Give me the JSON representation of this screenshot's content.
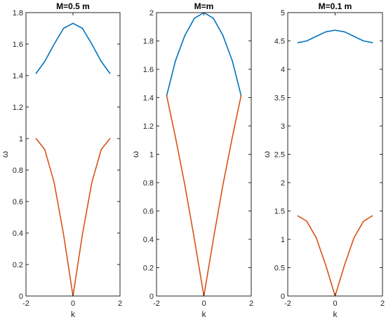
{
  "chart_data": [
    {
      "type": "line",
      "title": "M=0.5 m",
      "xlabel": "k",
      "ylabel": "ω",
      "xlim": [
        -2,
        2
      ],
      "ylim": [
        0,
        1.8
      ],
      "xticks": [
        "-2",
        "0",
        "2"
      ],
      "yticks": [
        "0",
        "0.2",
        "0.4",
        "0.6",
        "0.8",
        "1",
        "1.2",
        "1.4",
        "1.6",
        "1.8"
      ],
      "grid": false,
      "series": [
        {
          "color": "#0072BD",
          "x": [
            -1.571,
            -1.2,
            -0.8,
            -0.4,
            0,
            0.4,
            0.8,
            1.2,
            1.571
          ],
          "y": [
            1.414,
            1.49,
            1.6,
            1.7,
            1.732,
            1.7,
            1.6,
            1.49,
            1.414
          ]
        },
        {
          "color": "#D95319",
          "x": [
            -1.571,
            -1.2,
            -0.8,
            -0.4,
            0,
            0.4,
            0.8,
            1.2,
            1.571
          ],
          "y": [
            1.0,
            0.93,
            0.72,
            0.39,
            0,
            0.39,
            0.72,
            0.93,
            1.0
          ]
        }
      ]
    },
    {
      "type": "line",
      "title": "M=m",
      "xlabel": "k",
      "ylabel": "ω",
      "xlim": [
        -2,
        2
      ],
      "ylim": [
        0,
        2
      ],
      "xticks": [
        "-2",
        "0",
        "2"
      ],
      "yticks": [
        "0",
        "0.2",
        "0.4",
        "0.6",
        "0.8",
        "1",
        "1.2",
        "1.4",
        "1.6",
        "1.8",
        "2"
      ],
      "grid": false,
      "series": [
        {
          "color": "#0072BD",
          "x": [
            -1.571,
            -1.2,
            -0.8,
            -0.4,
            0,
            0.4,
            0.8,
            1.2,
            1.571
          ],
          "y": [
            1.414,
            1.66,
            1.84,
            1.96,
            2.0,
            1.96,
            1.84,
            1.66,
            1.414
          ]
        },
        {
          "color": "#D95319",
          "x": [
            -1.571,
            -1.2,
            -0.8,
            -0.4,
            0,
            0.4,
            0.8,
            1.2,
            1.571
          ],
          "y": [
            1.414,
            1.12,
            0.78,
            0.4,
            0,
            0.4,
            0.78,
            1.12,
            1.414
          ]
        }
      ]
    },
    {
      "type": "line",
      "title": "M=0.1 m",
      "xlabel": "k",
      "ylabel": "ω",
      "xlim": [
        -2,
        2
      ],
      "ylim": [
        0,
        5
      ],
      "xticks": [
        "-2",
        "0",
        "2"
      ],
      "yticks": [
        "0",
        "0.5",
        "1",
        "1.5",
        "2",
        "2.5",
        "3",
        "3.5",
        "4",
        "4.5",
        "5"
      ],
      "grid": false,
      "series": [
        {
          "color": "#0072BD",
          "x": [
            -1.571,
            -1.2,
            -0.8,
            -0.4,
            0,
            0.4,
            0.8,
            1.2,
            1.571
          ],
          "y": [
            4.47,
            4.5,
            4.58,
            4.66,
            4.69,
            4.66,
            4.58,
            4.5,
            4.47
          ]
        },
        {
          "color": "#D95319",
          "x": [
            -1.571,
            -1.2,
            -0.8,
            -0.4,
            0,
            0.4,
            0.8,
            1.2,
            1.571
          ],
          "y": [
            1.414,
            1.32,
            1.03,
            0.55,
            0,
            0.55,
            1.03,
            1.32,
            1.414
          ]
        }
      ]
    }
  ]
}
